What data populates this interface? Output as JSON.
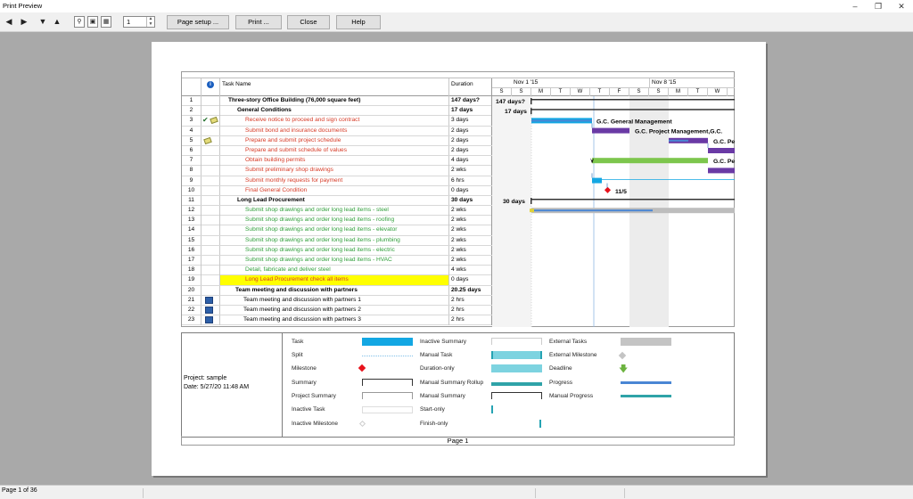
{
  "window": {
    "title": "Print Preview"
  },
  "toolbar": {
    "page_number": "1",
    "page_setup_label": "Page setup ...",
    "print_label": "Print ...",
    "close_label": "Close",
    "help_label": "Help"
  },
  "table": {
    "headers": {
      "info": "i",
      "name": "Task Name",
      "duration": "Duration"
    },
    "rows": [
      {
        "id": "1",
        "name": "Three-story Office Building (76,000 square feet)",
        "duration": "147 days?"
      },
      {
        "id": "2",
        "name": "General Conditions",
        "duration": "17 days"
      },
      {
        "id": "3",
        "name": "Receive notice to proceed and sign contract",
        "duration": "3 days"
      },
      {
        "id": "4",
        "name": "Submit bond and insurance documents",
        "duration": "2 days"
      },
      {
        "id": "5",
        "name": "Prepare and submit project schedule",
        "duration": "2 days"
      },
      {
        "id": "6",
        "name": "Prepare and submit schedule of values",
        "duration": "2 days"
      },
      {
        "id": "7",
        "name": "Obtain building permits",
        "duration": "4 days"
      },
      {
        "id": "8",
        "name": "Submit preliminary shop drawings",
        "duration": "2 wks"
      },
      {
        "id": "9",
        "name": "Submit monthly requests for payment",
        "duration": "6 hrs"
      },
      {
        "id": "10",
        "name": "Final General Condition",
        "duration": "0 days"
      },
      {
        "id": "11",
        "name": "Long Lead Procurement",
        "duration": "30 days"
      },
      {
        "id": "12",
        "name": "Submit shop drawings and order long lead items - steel",
        "duration": "2 wks"
      },
      {
        "id": "13",
        "name": "Submit shop drawings and order long lead items - roofing",
        "duration": "2 wks"
      },
      {
        "id": "14",
        "name": "Submit shop drawings and order long lead items - elevator",
        "duration": "2 wks"
      },
      {
        "id": "15",
        "name": "Submit shop drawings and order long lead items - plumbing",
        "duration": "2 wks"
      },
      {
        "id": "16",
        "name": "Submit shop drawings and order long lead items - electric",
        "duration": "2 wks"
      },
      {
        "id": "17",
        "name": "Submit shop drawings and order long lead items - HVAC",
        "duration": "2 wks"
      },
      {
        "id": "18",
        "name": "Detail, fabricate and deliver steel",
        "duration": "4 wks"
      },
      {
        "id": "19",
        "name": "Long Lead Procurement check all items",
        "duration": "0 days"
      },
      {
        "id": "20",
        "name": "Team meeting and discussion with partners",
        "duration": "20.25 days"
      },
      {
        "id": "21",
        "name": "Team meeting and discussion with partners 1",
        "duration": "2 hrs"
      },
      {
        "id": "22",
        "name": "Team meeting and discussion with partners 2",
        "duration": "2 hrs"
      },
      {
        "id": "23",
        "name": "Team meeting and discussion with partners 3",
        "duration": "2 hrs"
      }
    ]
  },
  "timescale": {
    "week1": "Nov 1 '15",
    "week2": "Nov 8 '15",
    "days": [
      "S",
      "S",
      "M",
      "T",
      "W",
      "T",
      "F",
      "S",
      "S",
      "M",
      "T",
      "W"
    ]
  },
  "chart_labels": {
    "summary1_duration": "147 days?",
    "summary2_duration": "17 days",
    "summary11_duration": "30 days",
    "gc_mgmt": "G.C. General Management",
    "gc_pm": "G.C. Project Management,G.C.",
    "gc_p1": "G.C. Pe",
    "gc_p2": "G.C. Pe",
    "gc_p3": "G.C. Pe",
    "milestone_date": "11/5"
  },
  "legend": {
    "project": "Project: sample",
    "date": "Date: 5/27/20 11:48 AM",
    "items": {
      "task": "Task",
      "split": "Split",
      "milestone": "Milestone",
      "summary": "Summary",
      "project_summary": "Project Summary",
      "inactive_task": "Inactive Task",
      "inactive_milestone": "Inactive Milestone",
      "inactive_summary": "Inactive Summary",
      "manual_task": "Manual Task",
      "duration_only": "Duration-only",
      "manual_summary_rollup": "Manual Summary Rollup",
      "manual_summary": "Manual Summary",
      "start_only": "Start-only",
      "finish_only": "Finish-only",
      "external_tasks": "External Tasks",
      "external_milestone": "External Milestone",
      "deadline": "Deadline",
      "progress": "Progress",
      "manual_progress": "Manual Progress"
    }
  },
  "footer": {
    "page_label": "Page 1"
  },
  "status": {
    "page_of": "Page 1 of 36"
  },
  "colors": {
    "task": "#13a7e3",
    "milestone": "#e8121b",
    "summary_bar": "#6a3aa5",
    "green_bar": "#7dc64d",
    "progress": "#4a86d4"
  }
}
